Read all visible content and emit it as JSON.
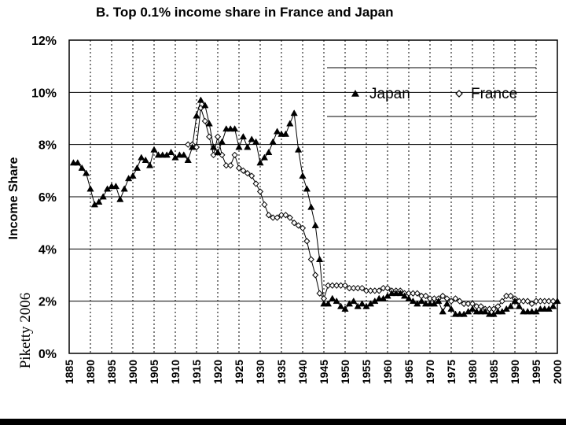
{
  "chart_data": {
    "type": "line",
    "title": "B. Top 0.1% income share in France and Japan",
    "ylabel": "Income Share",
    "xlim": [
      1885,
      2000
    ],
    "ylim": [
      0,
      12
    ],
    "y_ticks": [
      "0%",
      "2%",
      "4%",
      "6%",
      "8%",
      "10%",
      "12%"
    ],
    "x_ticks": [
      "1885",
      "1890",
      "1895",
      "1900",
      "1905",
      "1910",
      "1915",
      "1920",
      "1925",
      "1930",
      "1935",
      "1940",
      "1945",
      "1950",
      "1955",
      "1960",
      "1965",
      "1970",
      "1975",
      "1980",
      "1985",
      "1990",
      "1995",
      "2000"
    ],
    "legend_position": "top-right",
    "grid": "horizontal solid lines, vertical dashed lines",
    "series": [
      {
        "name": "Japan",
        "marker": "filled-triangle",
        "color": "#000000",
        "x": [
          1886,
          1887,
          1888,
          1889,
          1890,
          1891,
          1892,
          1893,
          1894,
          1895,
          1896,
          1897,
          1898,
          1899,
          1900,
          1901,
          1902,
          1903,
          1904,
          1905,
          1906,
          1907,
          1908,
          1909,
          1910,
          1911,
          1912,
          1913,
          1914,
          1915,
          1916,
          1917,
          1918,
          1919,
          1920,
          1921,
          1922,
          1923,
          1924,
          1925,
          1926,
          1927,
          1928,
          1929,
          1930,
          1931,
          1932,
          1933,
          1934,
          1935,
          1936,
          1937,
          1938,
          1939,
          1940,
          1941,
          1942,
          1943,
          1944,
          1945,
          1946,
          1947,
          1948,
          1949,
          1950,
          1951,
          1952,
          1953,
          1954,
          1955,
          1956,
          1957,
          1958,
          1959,
          1960,
          1961,
          1962,
          1963,
          1964,
          1965,
          1966,
          1967,
          1968,
          1969,
          1970,
          1971,
          1972,
          1973,
          1974,
          1975,
          1976,
          1977,
          1978,
          1979,
          1980,
          1981,
          1982,
          1983,
          1984,
          1985,
          1986,
          1987,
          1988,
          1989,
          1990,
          1991,
          1992,
          1993,
          1994,
          1995,
          1996,
          1997,
          1998,
          1999,
          2000
        ],
        "y": [
          7.3,
          7.3,
          7.1,
          6.9,
          6.3,
          5.7,
          5.8,
          6.0,
          6.3,
          6.4,
          6.4,
          5.9,
          6.3,
          6.7,
          6.8,
          7.1,
          7.5,
          7.4,
          7.2,
          7.8,
          7.6,
          7.6,
          7.6,
          7.7,
          7.5,
          7.6,
          7.6,
          7.4,
          7.9,
          9.1,
          9.7,
          9.5,
          8.8,
          7.9,
          7.7,
          8.1,
          8.6,
          8.6,
          8.6,
          7.9,
          8.3,
          7.9,
          8.2,
          8.1,
          7.3,
          7.5,
          7.7,
          8.1,
          8.5,
          8.4,
          8.4,
          8.8,
          9.2,
          7.8,
          6.8,
          6.3,
          5.6,
          4.9,
          3.6,
          1.9,
          1.9,
          2.1,
          2.0,
          1.8,
          1.7,
          1.9,
          2.0,
          1.8,
          1.9,
          1.8,
          1.9,
          2.0,
          2.1,
          2.1,
          2.2,
          2.3,
          2.3,
          2.3,
          2.2,
          2.1,
          2.0,
          1.9,
          2.0,
          1.9,
          1.9,
          1.9,
          2.0,
          1.6,
          1.9,
          1.7,
          1.5,
          1.5,
          1.5,
          1.6,
          1.7,
          1.6,
          1.6,
          1.6,
          1.5,
          1.5,
          1.6,
          1.6,
          1.7,
          1.8,
          2.0,
          1.8,
          1.6,
          1.6,
          1.6,
          1.6,
          1.7,
          1.7,
          1.7,
          1.8,
          2.0
        ]
      },
      {
        "name": "France",
        "marker": "open-diamond",
        "color": "#000000",
        "x": [
          1913,
          1914,
          1915,
          1916,
          1917,
          1918,
          1919,
          1920,
          1921,
          1922,
          1923,
          1924,
          1925,
          1926,
          1927,
          1928,
          1929,
          1930,
          1931,
          1932,
          1933,
          1934,
          1935,
          1936,
          1937,
          1938,
          1939,
          1940,
          1941,
          1942,
          1943,
          1944,
          1945,
          1946,
          1947,
          1948,
          1949,
          1950,
          1951,
          1952,
          1953,
          1954,
          1955,
          1956,
          1957,
          1958,
          1959,
          1960,
          1961,
          1962,
          1963,
          1964,
          1965,
          1966,
          1967,
          1968,
          1969,
          1970,
          1971,
          1972,
          1973,
          1974,
          1975,
          1976,
          1977,
          1978,
          1979,
          1980,
          1981,
          1982,
          1983,
          1984,
          1985,
          1986,
          1987,
          1988,
          1989,
          1990,
          1991,
          1992,
          1993,
          1994,
          1995,
          1996,
          1997,
          1998,
          1999
        ],
        "y": [
          8.0,
          8.0,
          7.9,
          9.4,
          8.9,
          8.3,
          7.6,
          8.3,
          7.6,
          7.2,
          7.2,
          7.6,
          7.1,
          7.0,
          6.9,
          6.8,
          6.5,
          6.2,
          5.7,
          5.3,
          5.2,
          5.2,
          5.3,
          5.3,
          5.2,
          5.0,
          4.9,
          4.8,
          4.3,
          3.6,
          3.0,
          2.3,
          2.1,
          2.6,
          2.6,
          2.6,
          2.6,
          2.6,
          2.5,
          2.5,
          2.5,
          2.5,
          2.4,
          2.4,
          2.4,
          2.4,
          2.5,
          2.5,
          2.4,
          2.4,
          2.4,
          2.3,
          2.3,
          2.3,
          2.3,
          2.2,
          2.2,
          2.1,
          2.1,
          2.1,
          2.2,
          2.1,
          2.0,
          2.1,
          2.0,
          1.9,
          1.9,
          1.9,
          1.8,
          1.8,
          1.7,
          1.7,
          1.7,
          1.8,
          2.0,
          2.2,
          2.2,
          2.1,
          2.0,
          2.0,
          2.0,
          1.9,
          2.0,
          2.0,
          2.0,
          2.0,
          2.0
        ]
      }
    ]
  },
  "watermark": "Piketty 2006"
}
